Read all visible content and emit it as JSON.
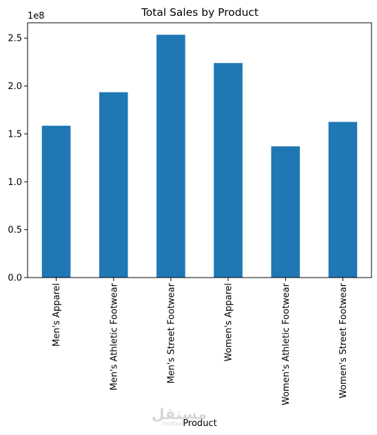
{
  "chart_data": {
    "type": "bar",
    "title": "Total Sales by Product",
    "xlabel": "Product",
    "ylabel": "",
    "offset_label": "1e8",
    "categories": [
      "Men's Apparel",
      "Men's Athletic Footwear",
      "Men's Street Footwear",
      "Women's Apparel",
      "Women's Athletic Footwear",
      "Women's Street Footwear"
    ],
    "values": [
      158500000,
      193500000,
      253500000,
      224000000,
      137000000,
      162500000
    ],
    "ylim": [
      0,
      266000000
    ],
    "yticks": [
      0,
      50000000,
      100000000,
      150000000,
      200000000,
      250000000
    ],
    "ytick_labels": [
      "0.0",
      "0.5",
      "1.0",
      "1.5",
      "2.0",
      "2.5"
    ],
    "grid": false,
    "legend": "none",
    "colors": {
      "bar": "#1f77b4"
    }
  },
  "watermark": {
    "text": "مستقل",
    "subtext": "mostaql.com"
  }
}
